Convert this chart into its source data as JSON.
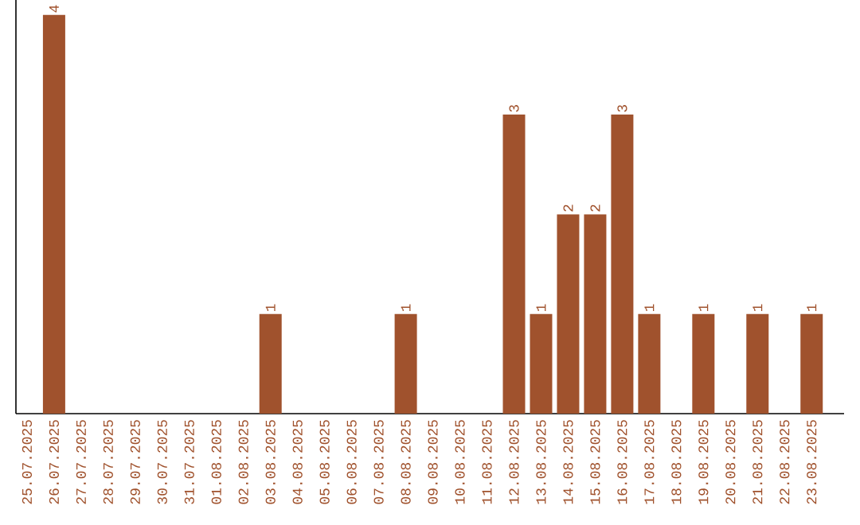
{
  "chart_data": {
    "type": "bar",
    "categories": [
      "25.07.2025",
      "26.07.2025",
      "27.07.2025",
      "28.07.2025",
      "29.07.2025",
      "30.07.2025",
      "31.07.2025",
      "01.08.2025",
      "02.08.2025",
      "03.08.2025",
      "04.08.2025",
      "05.08.2025",
      "06.08.2025",
      "07.08.2025",
      "08.08.2025",
      "09.08.2025",
      "10.08.2025",
      "11.08.2025",
      "12.08.2025",
      "13.08.2025",
      "14.08.2025",
      "15.08.2025",
      "16.08.2025",
      "17.08.2025",
      "18.08.2025",
      "19.08.2025",
      "20.08.2025",
      "21.08.2025",
      "22.08.2025",
      "23.08.2025"
    ],
    "values": [
      null,
      4,
      null,
      null,
      null,
      null,
      null,
      null,
      null,
      1,
      null,
      null,
      null,
      null,
      1,
      null,
      null,
      null,
      3,
      1,
      2,
      2,
      3,
      1,
      null,
      1,
      null,
      1,
      null,
      1
    ],
    "color": "#a0522d",
    "ylim": [
      0,
      4.15
    ],
    "data_labels": true,
    "tick_labels": "x"
  }
}
